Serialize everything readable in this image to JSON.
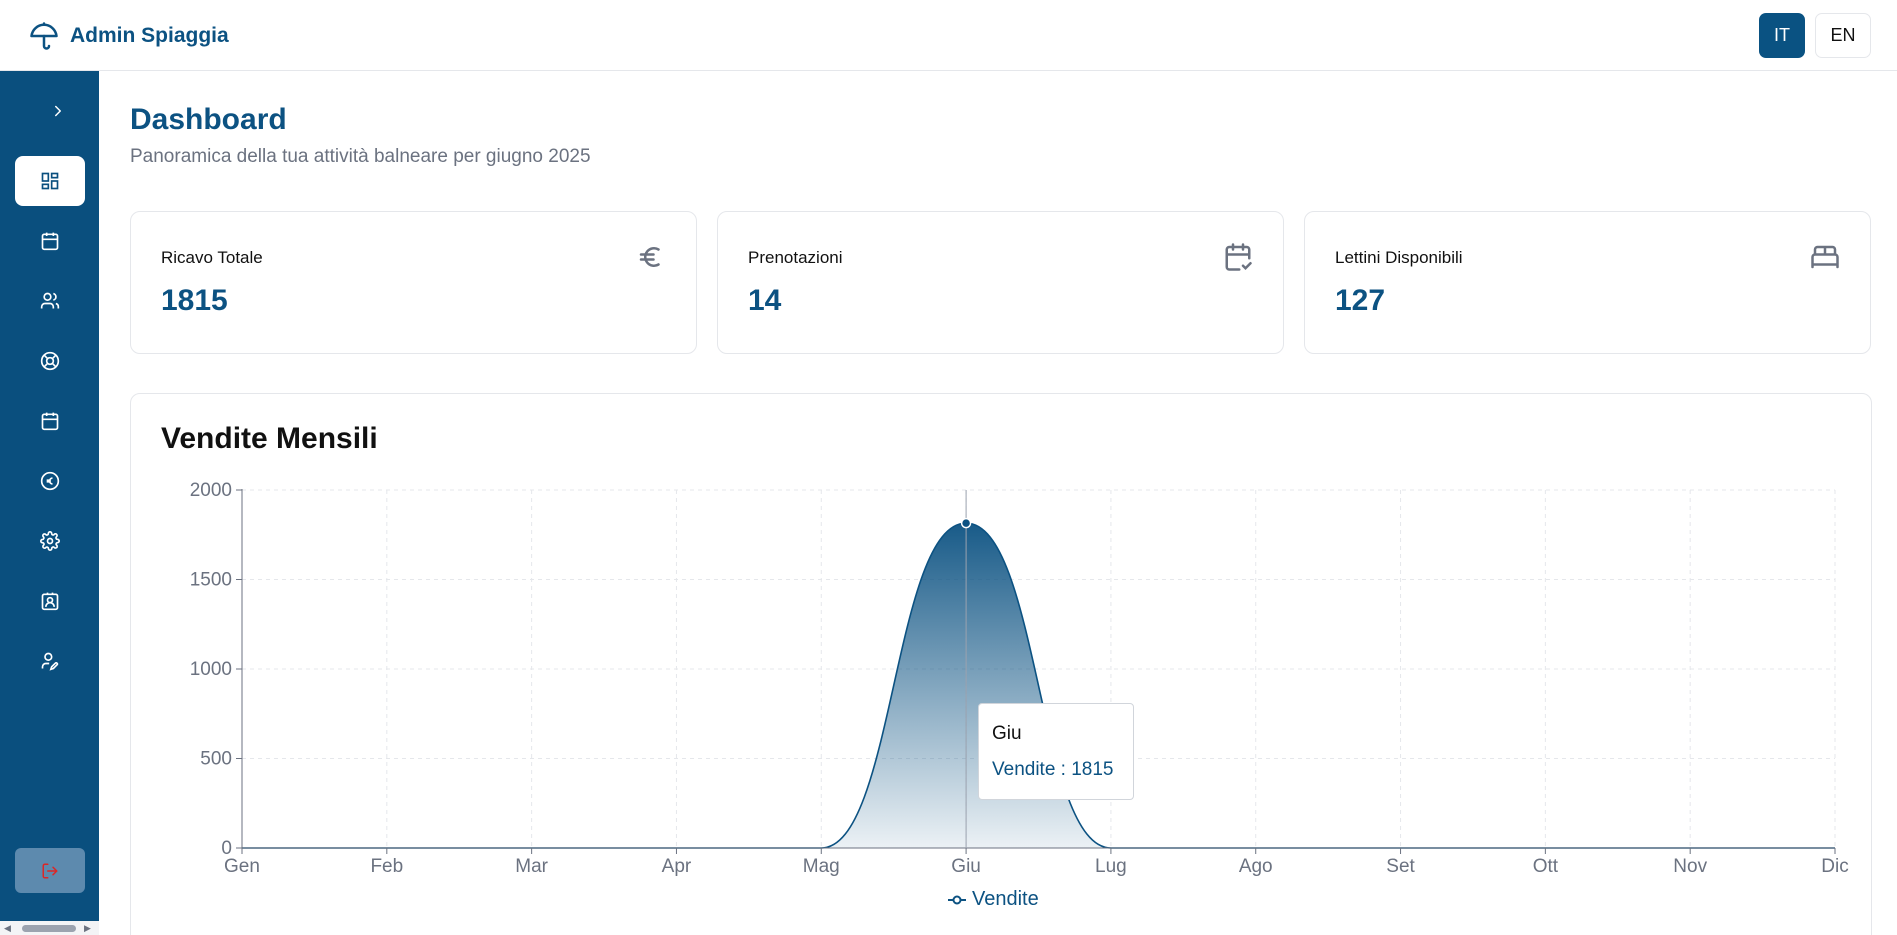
{
  "header": {
    "brand_name": "Admin Spiaggia",
    "lang_it": "IT",
    "lang_en": "EN",
    "active_lang": "IT"
  },
  "sidebar": {
    "items": [
      {
        "icon": "dashboard-icon",
        "active": true
      },
      {
        "icon": "calendar-icon",
        "active": false
      },
      {
        "icon": "users-icon",
        "active": false
      },
      {
        "icon": "lifebuoy-icon",
        "active": false
      },
      {
        "icon": "calendar-icon",
        "active": false
      },
      {
        "icon": "euro-coin-icon",
        "active": false
      },
      {
        "icon": "gear-icon",
        "active": false
      },
      {
        "icon": "id-badge-icon",
        "active": false
      },
      {
        "icon": "user-edit-icon",
        "active": false
      }
    ],
    "logout_icon": "logout-icon"
  },
  "page": {
    "title": "Dashboard",
    "subtitle": "Panoramica della tua attività balneare per giugno 2025"
  },
  "stats": [
    {
      "label": "Ricavo Totale",
      "value": "1815",
      "icon": "euro-icon"
    },
    {
      "label": "Prenotazioni",
      "value": "14",
      "icon": "calendar-check-icon"
    },
    {
      "label": "Lettini Disponibili",
      "value": "127",
      "icon": "bed-icon"
    }
  ],
  "colors": {
    "brand": "#0a4f7e",
    "accent": "#0c5282"
  },
  "chart_card": {
    "title": "Vendite Mensili"
  },
  "tooltip": {
    "label": "Giu",
    "value_text": "Vendite : 1815"
  },
  "chart_data": {
    "type": "area",
    "title": "Vendite Mensili",
    "categories": [
      "Gen",
      "Feb",
      "Mar",
      "Apr",
      "Mag",
      "Giu",
      "Lug",
      "Ago",
      "Set",
      "Ott",
      "Nov",
      "Dic"
    ],
    "series": [
      {
        "name": "Vendite",
        "values": [
          0,
          0,
          0,
          0,
          0,
          1815,
          0,
          0,
          0,
          0,
          0,
          0
        ]
      }
    ],
    "ylim": [
      0,
      2000
    ],
    "yticks": [
      0,
      500,
      1000,
      1500,
      2000
    ],
    "grid": true,
    "legend": "bottom-center",
    "active_category": "Giu"
  }
}
